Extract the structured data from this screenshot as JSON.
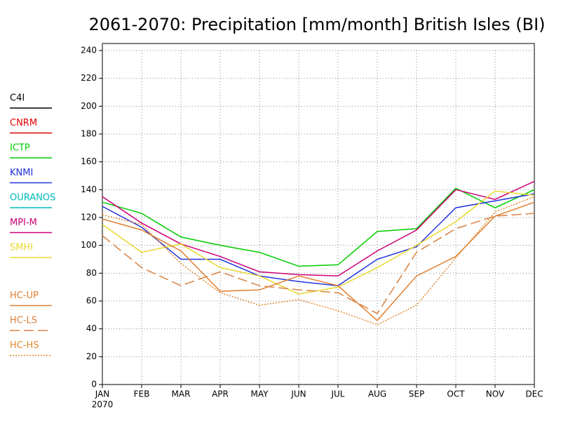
{
  "chart_data": {
    "type": "line",
    "title": "2061-2070: Precipitation [mm/month] British Isles (BI)",
    "categories": [
      "JAN",
      "FEB",
      "MAR",
      "APR",
      "MAY",
      "JUN",
      "JUL",
      "AUG",
      "SEP",
      "OCT",
      "NOV",
      "DEC"
    ],
    "year_label": "2070",
    "ylim": [
      0,
      240
    ],
    "yticks": [
      0,
      20,
      40,
      60,
      80,
      100,
      120,
      140,
      160,
      180,
      200,
      220,
      240
    ],
    "grid": true,
    "legend": "left",
    "series": [
      {
        "name": "C4I",
        "color": "#000000",
        "style": "solid",
        "values": [
          null,
          null,
          null,
          null,
          null,
          null,
          null,
          null,
          null,
          null,
          null,
          null
        ]
      },
      {
        "name": "CNRM",
        "color": "#e00000",
        "style": "solid",
        "values": [
          null,
          null,
          null,
          null,
          null,
          null,
          null,
          null,
          null,
          null,
          null,
          null
        ]
      },
      {
        "name": "ICTP",
        "color": "#00cc00",
        "style": "solid",
        "values": [
          131,
          123,
          106,
          100,
          95,
          85,
          86,
          110,
          112,
          141,
          127,
          140
        ]
      },
      {
        "name": "KNMI",
        "color": "#2233dd",
        "style": "solid",
        "values": [
          128,
          113,
          90,
          90,
          78,
          74,
          71,
          90,
          99,
          127,
          132,
          137
        ]
      },
      {
        "name": "OURANOS",
        "color": "#00bbbb",
        "style": "solid",
        "values": [
          null,
          null,
          null,
          null,
          null,
          null,
          null,
          null,
          null,
          null,
          null,
          null
        ]
      },
      {
        "name": "MPI-M",
        "color": "#cc0077",
        "style": "solid",
        "values": [
          135,
          116,
          101,
          92,
          81,
          79,
          78,
          96,
          111,
          140,
          133,
          146
        ]
      },
      {
        "name": "SMHI",
        "color": "#e8d830",
        "style": "solid",
        "values": [
          115,
          95,
          101,
          84,
          78,
          65,
          70,
          84,
          100,
          117,
          139,
          136
        ]
      },
      {
        "name": "HC-UP",
        "color": "#e07f30",
        "style": "solid",
        "values": [
          119,
          111,
          96,
          67,
          68,
          78,
          71,
          46,
          78,
          92,
          121,
          131
        ]
      },
      {
        "name": "HC-LS",
        "color": "#d88040",
        "style": "dashed",
        "values": [
          107,
          84,
          71,
          81,
          71,
          68,
          66,
          51,
          95,
          112,
          121,
          123
        ]
      },
      {
        "name": "HC-HS",
        "color": "#e08a30",
        "style": "dotted",
        "values": [
          122,
          115,
          87,
          66,
          57,
          61,
          53,
          43,
          57,
          91,
          124,
          135
        ]
      }
    ]
  }
}
